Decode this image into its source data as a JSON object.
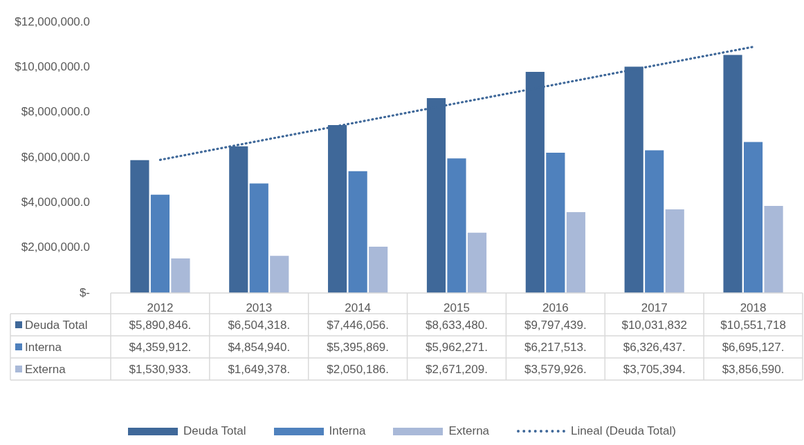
{
  "chart_data": {
    "type": "bar",
    "categories": [
      "2012",
      "2013",
      "2014",
      "2015",
      "2016",
      "2017",
      "2018"
    ],
    "series": [
      {
        "name": "Deuda Total",
        "color": "#3f6899",
        "values": [
          5890846,
          6504318,
          7446056,
          8633480,
          9797439,
          10031832,
          10551718
        ],
        "value_labels": [
          "$5,890,846.",
          "$6,504,318.",
          "$7,446,056.",
          "$8,633,480.",
          "$9,797,439.",
          "$10,031,832",
          "$10,551,718"
        ]
      },
      {
        "name": "Interna",
        "color": "#4f81bd",
        "values": [
          4359912,
          4854940,
          5395869,
          5962271,
          6217513,
          6326437,
          6695127
        ],
        "value_labels": [
          "$4,359,912.",
          "$4,854,940.",
          "$5,395,869.",
          "$5,962,271.",
          "$6,217,513.",
          "$6,326,437.",
          "$6,695,127."
        ]
      },
      {
        "name": "Externa",
        "color": "#a9b9d8",
        "values": [
          1530933,
          1649378,
          2050186,
          2671209,
          3579926,
          3705394,
          3856590
        ],
        "value_labels": [
          "$1,530,933.",
          "$1,649,378.",
          "$2,050,186.",
          "$2,671,209.",
          "$3,579,926.",
          "$3,705,394.",
          "$3,856,590."
        ]
      },
      {
        "name": "Lineal (Deuda Total)",
        "type": "line",
        "line_style": "dotted",
        "color": "#3f6899",
        "values": [
          5900000,
          6740000,
          7570000,
          8410000,
          9240000,
          10080000,
          10910000
        ]
      }
    ],
    "ylim": [
      0,
      12000000
    ],
    "yticks": [
      {
        "value": 0,
        "label": "$-"
      },
      {
        "value": 2000000,
        "label": "$2,000,000.0"
      },
      {
        "value": 4000000,
        "label": "$4,000,000.0"
      },
      {
        "value": 6000000,
        "label": "$6,000,000.0"
      },
      {
        "value": 8000000,
        "label": "$8,000,000.0"
      },
      {
        "value": 10000000,
        "label": "$10,000,000.0"
      },
      {
        "value": 12000000,
        "label": "$12,000,000.0"
      }
    ],
    "grid": false,
    "legend": "bottom",
    "marker": "none"
  }
}
